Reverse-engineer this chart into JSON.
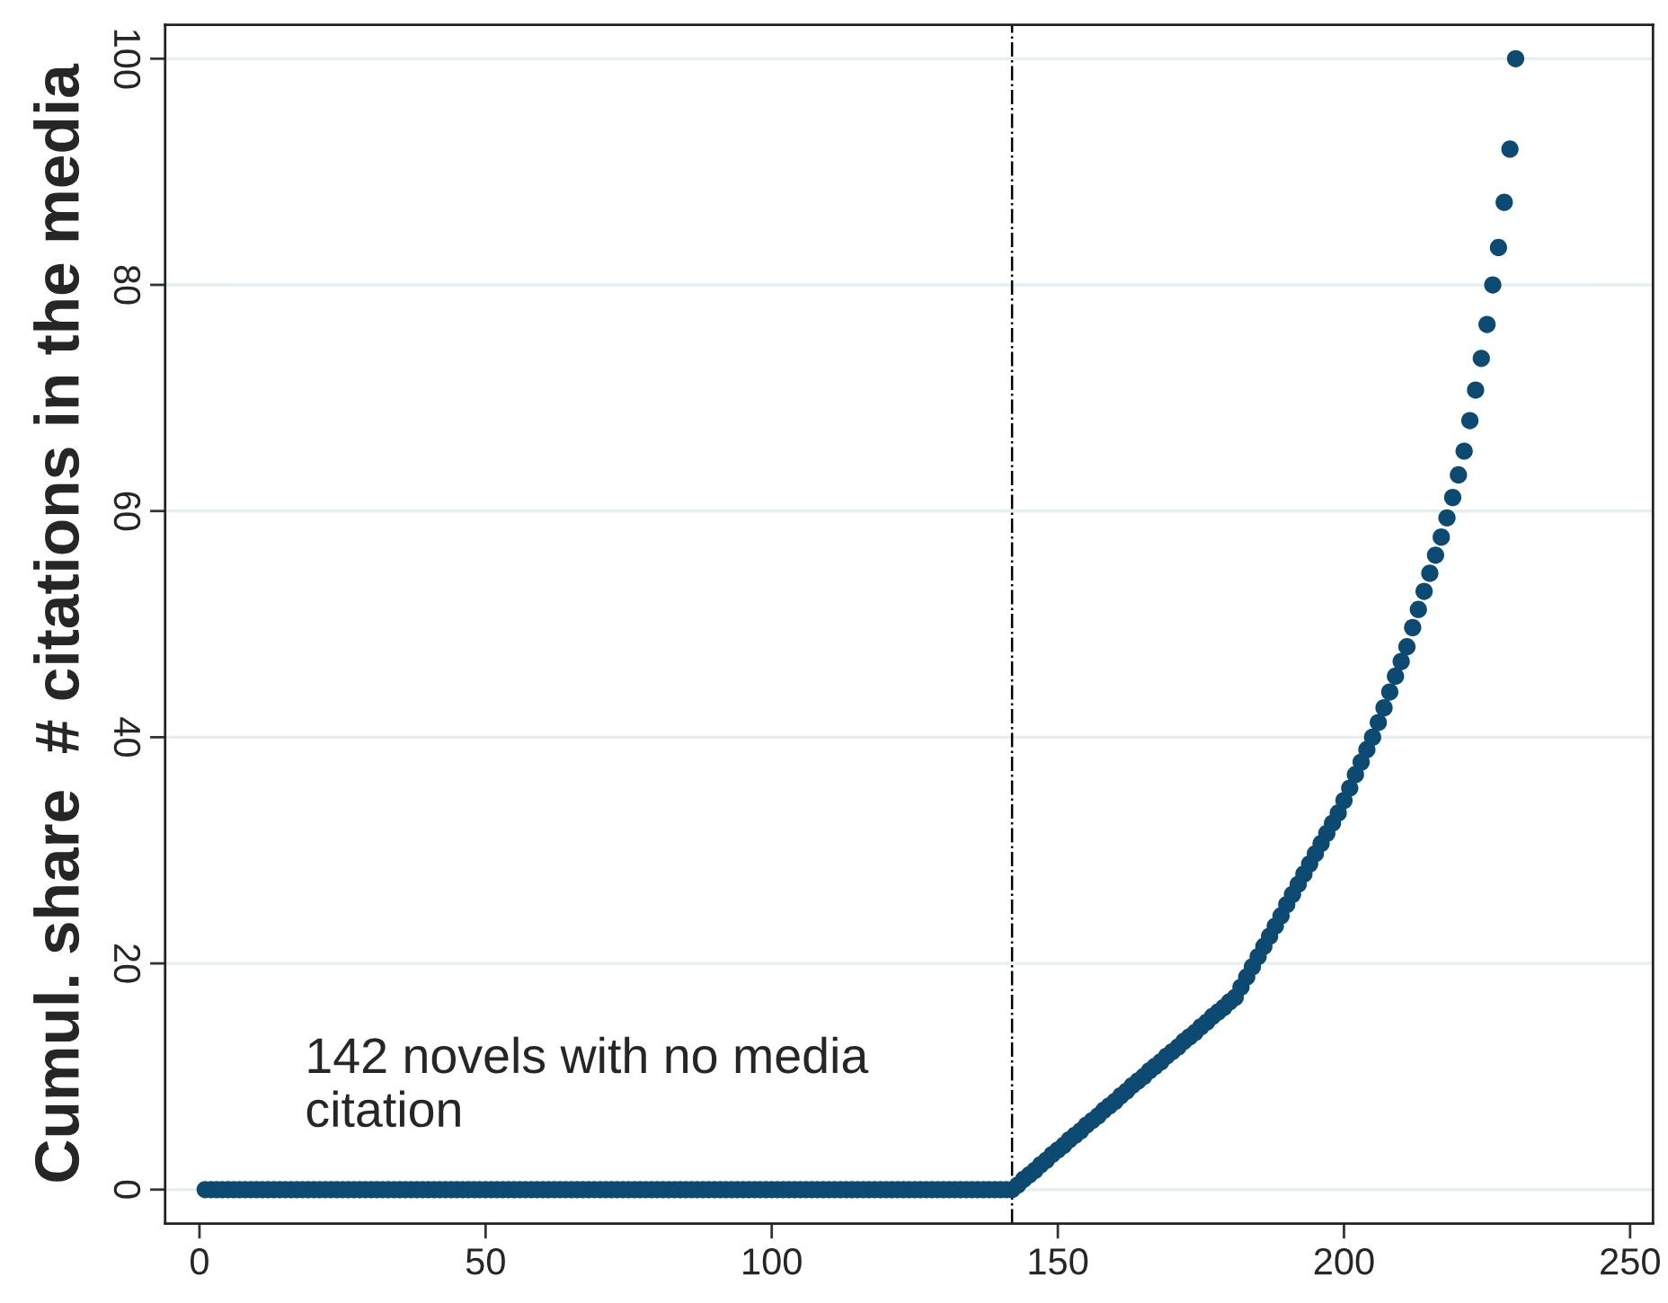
{
  "chart_data": {
    "type": "scatter",
    "ylabel": "Cumul. share  # citations in the media",
    "x": [
      1,
      2,
      3,
      4,
      5,
      6,
      7,
      8,
      9,
      10,
      11,
      12,
      13,
      14,
      15,
      16,
      17,
      18,
      19,
      20,
      21,
      22,
      23,
      24,
      25,
      26,
      27,
      28,
      29,
      30,
      31,
      32,
      33,
      34,
      35,
      36,
      37,
      38,
      39,
      40,
      41,
      42,
      43,
      44,
      45,
      46,
      47,
      48,
      49,
      50,
      51,
      52,
      53,
      54,
      55,
      56,
      57,
      58,
      59,
      60,
      61,
      62,
      63,
      64,
      65,
      66,
      67,
      68,
      69,
      70,
      71,
      72,
      73,
      74,
      75,
      76,
      77,
      78,
      79,
      80,
      81,
      82,
      83,
      84,
      85,
      86,
      87,
      88,
      89,
      90,
      91,
      92,
      93,
      94,
      95,
      96,
      97,
      98,
      99,
      100,
      101,
      102,
      103,
      104,
      105,
      106,
      107,
      108,
      109,
      110,
      111,
      112,
      113,
      114,
      115,
      116,
      117,
      118,
      119,
      120,
      121,
      122,
      123,
      124,
      125,
      126,
      127,
      128,
      129,
      130,
      131,
      132,
      133,
      134,
      135,
      136,
      137,
      138,
      139,
      140,
      141,
      142,
      143,
      144,
      145,
      146,
      147,
      148,
      149,
      150,
      151,
      152,
      153,
      154,
      155,
      156,
      157,
      158,
      159,
      160,
      161,
      162,
      163,
      164,
      165,
      166,
      167,
      168,
      169,
      170,
      171,
      172,
      173,
      174,
      175,
      176,
      177,
      178,
      179,
      180,
      181,
      182,
      183,
      184,
      185,
      186,
      187,
      188,
      189,
      190,
      191,
      192,
      193,
      194,
      195,
      196,
      197,
      198,
      199,
      200,
      201,
      202,
      203,
      204,
      205,
      206,
      207,
      208,
      209,
      210,
      211,
      212,
      213,
      214,
      215,
      216,
      217,
      218,
      219,
      220,
      221,
      222,
      223,
      224,
      225,
      226,
      227,
      228,
      229,
      230
    ],
    "series": [
      {
        "color": "#0d4a72",
        "values": [
          0,
          0,
          0,
          0,
          0,
          0,
          0,
          0,
          0,
          0,
          0,
          0,
          0,
          0,
          0,
          0,
          0,
          0,
          0,
          0,
          0,
          0,
          0,
          0,
          0,
          0,
          0,
          0,
          0,
          0,
          0,
          0,
          0,
          0,
          0,
          0,
          0,
          0,
          0,
          0,
          0,
          0,
          0,
          0,
          0,
          0,
          0,
          0,
          0,
          0,
          0,
          0,
          0,
          0,
          0,
          0,
          0,
          0,
          0,
          0,
          0,
          0,
          0,
          0,
          0,
          0,
          0,
          0,
          0,
          0,
          0,
          0,
          0,
          0,
          0,
          0,
          0,
          0,
          0,
          0,
          0,
          0,
          0,
          0,
          0,
          0,
          0,
          0,
          0,
          0,
          0,
          0,
          0,
          0,
          0,
          0,
          0,
          0,
          0,
          0,
          0,
          0,
          0,
          0,
          0,
          0,
          0,
          0,
          0,
          0,
          0,
          0,
          0,
          0,
          0,
          0,
          0,
          0,
          0,
          0,
          0,
          0,
          0,
          0,
          0,
          0,
          0,
          0,
          0,
          0,
          0,
          0,
          0,
          0,
          0,
          0,
          0,
          0,
          0,
          0,
          0,
          0,
          0.4,
          0.9,
          1.3,
          1.7,
          2.2,
          2.6,
          3.1,
          3.5,
          3.9,
          4.4,
          4.8,
          5.2,
          5.7,
          6.1,
          6.5,
          7.0,
          7.4,
          7.8,
          8.3,
          8.7,
          9.2,
          9.6,
          10.0,
          10.5,
          10.9,
          11.3,
          11.8,
          12.2,
          12.6,
          13.1,
          13.5,
          13.9,
          14.4,
          14.8,
          15.3,
          15.7,
          16.1,
          16.6,
          17.0,
          17.9,
          18.8,
          19.7,
          20.6,
          21.5,
          22.4,
          23.3,
          24.2,
          25.2,
          26.1,
          27.0,
          27.9,
          28.8,
          29.7,
          30.6,
          31.5,
          32.4,
          33.3,
          34.4,
          35.5,
          36.7,
          37.8,
          38.9,
          40.0,
          41.3,
          42.6,
          44.0,
          45.4,
          46.7,
          48.0,
          49.7,
          51.3,
          52.9,
          54.5,
          56.1,
          57.7,
          59.4,
          61.2,
          63.2,
          65.3,
          68.0,
          70.7,
          73.5,
          76.5,
          80.0,
          83.3,
          87.3,
          92.0,
          100
        ]
      }
    ],
    "xlim": [
      -6,
      254
    ],
    "ylim": [
      -3,
      103
    ],
    "xticks": [
      0,
      50,
      100,
      150,
      200,
      250
    ],
    "yticks": [
      0,
      20,
      40,
      60,
      80,
      100
    ],
    "grid": "y",
    "marker": "circle",
    "legend": false,
    "ref_lines": [
      {
        "axis": "x",
        "value": 142,
        "label": null,
        "color": "#000000",
        "line_style": "dashdot"
      }
    ],
    "annotations": [
      "142 novels with no media\ncitation"
    ]
  }
}
